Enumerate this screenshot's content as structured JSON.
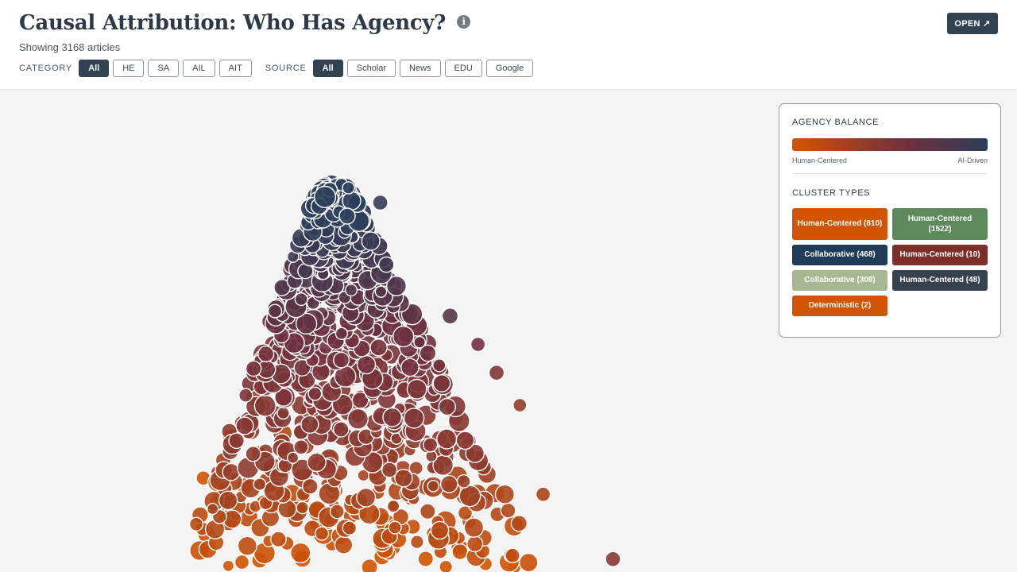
{
  "header": {
    "title": "Causal Attribution: Who Has Agency?",
    "info_icon": "info-icon",
    "subtitle": "Showing 3168 articles",
    "open_label": "OPEN ↗"
  },
  "filters": {
    "category_label": "CATEGORY",
    "categories": [
      {
        "label": "All",
        "active": true
      },
      {
        "label": "HE",
        "active": false
      },
      {
        "label": "SA",
        "active": false
      },
      {
        "label": "AIL",
        "active": false
      },
      {
        "label": "AIT",
        "active": false
      }
    ],
    "source_label": "SOURCE",
    "sources": [
      {
        "label": "All",
        "active": true
      },
      {
        "label": "Scholar",
        "active": false
      },
      {
        "label": "News",
        "active": false
      },
      {
        "label": "EDU",
        "active": false
      },
      {
        "label": "Google",
        "active": false
      }
    ]
  },
  "legend": {
    "balance_title": "AGENCY BALANCE",
    "left_label": "Human-Centered",
    "right_label": "AI-Driven",
    "gradient_colors": [
      "#d35400",
      "#8e3a2f",
      "#6d3040",
      "#2c3e5a"
    ],
    "cluster_title": "CLUSTER TYPES",
    "clusters": [
      {
        "label": "Human-Centered (810)",
        "color": "#d35400"
      },
      {
        "label": "Human-Centered (1522)",
        "color": "#5d8a5d"
      },
      {
        "label": "Collaborative (468)",
        "color": "#1f3b57"
      },
      {
        "label": "Human-Centered (10)",
        "color": "#7d2e28"
      },
      {
        "label": "Collaborative (308)",
        "color": "#a6b892"
      },
      {
        "label": "Human-Centered (48)",
        "color": "#36424d"
      },
      {
        "label": "Deterministic (2)",
        "color": "#d35400"
      }
    ]
  },
  "chart_data": {
    "type": "scatter",
    "title": "",
    "xlabel": "",
    "ylabel": "",
    "grid": false,
    "color_scale": [
      "#d35400",
      "#8e3a2f",
      "#6d3040",
      "#2c3e5a"
    ],
    "note_marks": "agency value 0 = Human-Centered, 1 = AI-Driven",
    "points": [
      {
        "x": 0.07,
        "y": 0.22,
        "agency": 0.02,
        "size": 1.0
      },
      {
        "x": 0.1,
        "y": 0.21,
        "agency": 0.05,
        "size": 1.6
      },
      {
        "x": 0.16,
        "y": 0.2,
        "agency": 0.04,
        "size": 1.3
      },
      {
        "x": 0.2,
        "y": 0.16,
        "agency": 0.06,
        "size": 1.1
      },
      {
        "x": 0.26,
        "y": 0.18,
        "agency": 0.08,
        "size": 1.7
      },
      {
        "x": 0.31,
        "y": 0.14,
        "agency": 0.05,
        "size": 1.4
      },
      {
        "x": 0.35,
        "y": 0.19,
        "agency": 0.1,
        "size": 1.5
      },
      {
        "x": 0.4,
        "y": 0.15,
        "agency": 0.07,
        "size": 1.2
      },
      {
        "x": 0.46,
        "y": 0.11,
        "agency": 0.04,
        "size": 1.6
      },
      {
        "x": 0.52,
        "y": 0.1,
        "agency": 0.06,
        "size": 1.1
      },
      {
        "x": 0.57,
        "y": 0.07,
        "agency": 0.03,
        "size": 1.5
      },
      {
        "x": 0.62,
        "y": 0.05,
        "agency": 0.05,
        "size": 1.3
      },
      {
        "x": 0.67,
        "y": 0.04,
        "agency": 0.08,
        "size": 1.0
      },
      {
        "x": 0.73,
        "y": 0.03,
        "agency": 0.06,
        "size": 0.9
      },
      {
        "x": 0.13,
        "y": 0.32,
        "agency": 0.12,
        "size": 1.4
      },
      {
        "x": 0.19,
        "y": 0.28,
        "agency": 0.15,
        "size": 1.2
      },
      {
        "x": 0.24,
        "y": 0.33,
        "agency": 0.18,
        "size": 1.6
      },
      {
        "x": 0.29,
        "y": 0.3,
        "agency": 0.22,
        "size": 1.3
      },
      {
        "x": 0.34,
        "y": 0.27,
        "agency": 0.16,
        "size": 1.1
      },
      {
        "x": 0.39,
        "y": 0.31,
        "agency": 0.25,
        "size": 1.5
      },
      {
        "x": 0.44,
        "y": 0.25,
        "agency": 0.2,
        "size": 1.0
      },
      {
        "x": 0.5,
        "y": 0.22,
        "agency": 0.28,
        "size": 1.4
      },
      {
        "x": 0.18,
        "y": 0.42,
        "agency": 0.3,
        "size": 1.5
      },
      {
        "x": 0.23,
        "y": 0.46,
        "agency": 0.35,
        "size": 1.2
      },
      {
        "x": 0.28,
        "y": 0.4,
        "agency": 0.38,
        "size": 1.6
      },
      {
        "x": 0.33,
        "y": 0.44,
        "agency": 0.4,
        "size": 1.3
      },
      {
        "x": 0.38,
        "y": 0.38,
        "agency": 0.42,
        "size": 1.1
      },
      {
        "x": 0.43,
        "y": 0.42,
        "agency": 0.36,
        "size": 1.4
      },
      {
        "x": 0.48,
        "y": 0.35,
        "agency": 0.45,
        "size": 1.2
      },
      {
        "x": 0.55,
        "y": 0.3,
        "agency": 0.33,
        "size": 1.0
      },
      {
        "x": 0.22,
        "y": 0.55,
        "agency": 0.5,
        "size": 1.4
      },
      {
        "x": 0.27,
        "y": 0.58,
        "agency": 0.55,
        "size": 1.1
      },
      {
        "x": 0.32,
        "y": 0.52,
        "agency": 0.58,
        "size": 1.6
      },
      {
        "x": 0.37,
        "y": 0.56,
        "agency": 0.52,
        "size": 1.3
      },
      {
        "x": 0.42,
        "y": 0.5,
        "agency": 0.6,
        "size": 1.5
      },
      {
        "x": 0.47,
        "y": 0.48,
        "agency": 0.48,
        "size": 1.0
      },
      {
        "x": 0.26,
        "y": 0.67,
        "agency": 0.65,
        "size": 1.3
      },
      {
        "x": 0.31,
        "y": 0.7,
        "agency": 0.7,
        "size": 1.5
      },
      {
        "x": 0.36,
        "y": 0.65,
        "agency": 0.68,
        "size": 1.2
      },
      {
        "x": 0.41,
        "y": 0.68,
        "agency": 0.72,
        "size": 1.4
      },
      {
        "x": 0.3,
        "y": 0.8,
        "agency": 0.8,
        "size": 1.2
      },
      {
        "x": 0.35,
        "y": 0.82,
        "agency": 0.85,
        "size": 1.5
      },
      {
        "x": 0.4,
        "y": 0.86,
        "agency": 0.9,
        "size": 1.3
      },
      {
        "x": 0.45,
        "y": 0.9,
        "agency": 0.95,
        "size": 1.1
      },
      {
        "x": 0.33,
        "y": 0.92,
        "agency": 0.92,
        "size": 1.4
      },
      {
        "x": 0.6,
        "y": 0.62,
        "agency": 0.78,
        "size": 1.2
      },
      {
        "x": 0.66,
        "y": 0.55,
        "agency": 0.62,
        "size": 1.0
      },
      {
        "x": 0.7,
        "y": 0.48,
        "agency": 0.45,
        "size": 1.1
      },
      {
        "x": 0.75,
        "y": 0.4,
        "agency": 0.3,
        "size": 0.9
      },
      {
        "x": 0.8,
        "y": 0.18,
        "agency": 0.2,
        "size": 1.0
      },
      {
        "x": 0.95,
        "y": 0.02,
        "agency": 0.4,
        "size": 1.1
      }
    ]
  }
}
